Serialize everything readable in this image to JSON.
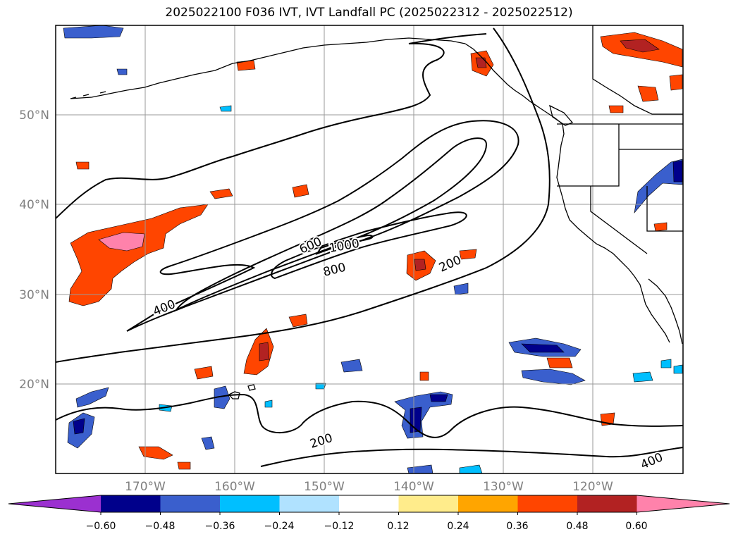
{
  "title": "2025022100 F036 IVT, IVT Landfall PC (2025022312 - 2025022512)",
  "map": {
    "lat_labels": [
      "50°N",
      "40°N",
      "30°N",
      "20°N"
    ],
    "lon_labels": [
      "170°W",
      "160°W",
      "150°W",
      "140°W",
      "130°W",
      "120°W"
    ],
    "contour_labels": [
      {
        "text": "400"
      },
      {
        "text": "600"
      },
      {
        "text": "1000"
      },
      {
        "text": "800"
      },
      {
        "text": "200"
      },
      {
        "text": "200"
      },
      {
        "text": "400"
      }
    ]
  },
  "colorbar": {
    "colors": [
      "#9b30d0",
      "#00008b",
      "#3a5fcd",
      "#00bfff",
      "#b0e2ff",
      "#ffffff",
      "#ffec8b",
      "#ffa500",
      "#ff4500",
      "#b22222",
      "#ff82ab"
    ],
    "tick_labels": [
      "−0.60",
      "−0.48",
      "−0.36",
      "−0.24",
      "−0.12",
      "0.12",
      "0.24",
      "0.36",
      "0.48",
      "0.60"
    ]
  }
}
